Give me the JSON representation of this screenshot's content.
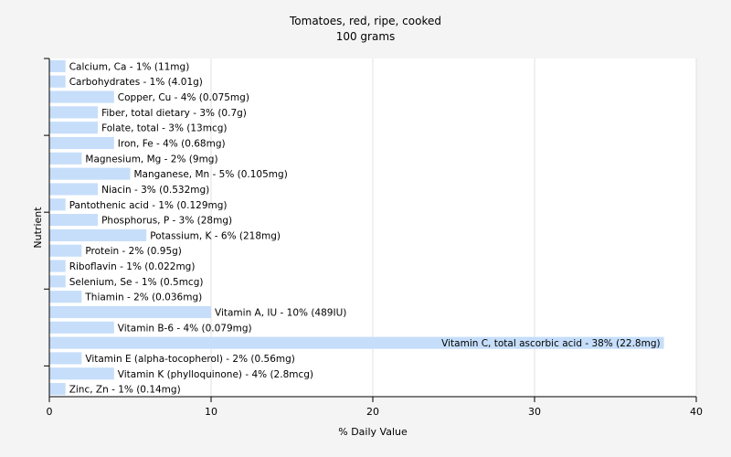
{
  "chart_data": {
    "type": "bar",
    "orientation": "horizontal",
    "title": "Tomatoes, red, ripe, cooked",
    "subtitle": "100 grams",
    "xlabel": "% Daily Value",
    "ylabel": "Nutrient",
    "xlim": [
      0,
      40
    ],
    "xticks": [
      "0",
      "10",
      "20",
      "30",
      "40"
    ],
    "grid": true,
    "bar_color": "#c6defa",
    "categories": [
      "Calcium, Ca - 1% (11mg)",
      "Carbohydrates - 1% (4.01g)",
      "Copper, Cu - 4% (0.075mg)",
      "Fiber, total dietary - 3% (0.7g)",
      "Folate, total - 3% (13mcg)",
      "Iron, Fe - 4% (0.68mg)",
      "Magnesium, Mg - 2% (9mg)",
      "Manganese, Mn - 5% (0.105mg)",
      "Niacin - 3% (0.532mg)",
      "Pantothenic acid - 1% (0.129mg)",
      "Phosphorus, P - 3% (28mg)",
      "Potassium, K - 6% (218mg)",
      "Protein - 2% (0.95g)",
      "Riboflavin - 1% (0.022mg)",
      "Selenium, Se - 1% (0.5mcg)",
      "Thiamin - 2% (0.036mg)",
      "Vitamin A, IU - 10% (489IU)",
      "Vitamin B-6 - 4% (0.079mg)",
      "Vitamin C, total ascorbic acid - 38% (22.8mg)",
      "Vitamin E (alpha-tocopherol) - 2% (0.56mg)",
      "Vitamin K (phylloquinone) - 4% (2.8mcg)",
      "Zinc, Zn - 1% (0.14mg)"
    ],
    "values": [
      1,
      1,
      4,
      3,
      3,
      4,
      2,
      5,
      3,
      1,
      3,
      6,
      2,
      1,
      1,
      2,
      10,
      4,
      38,
      2,
      4,
      1
    ]
  }
}
